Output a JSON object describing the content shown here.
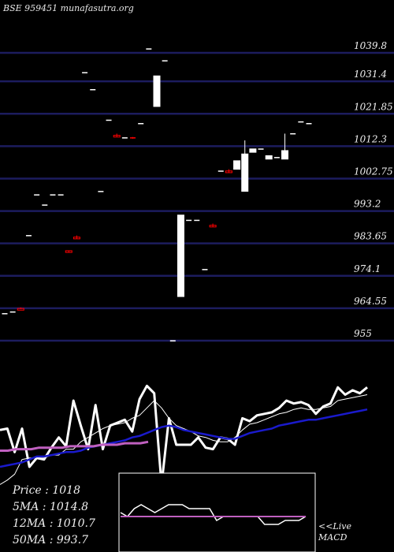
{
  "title": "BSE 959451 munafasutra.org",
  "colors": {
    "background": "#000000",
    "grid": "#1c1c5e",
    "up": "#ffffff",
    "down": "#ff0000",
    "price_line": "#ffffff",
    "ma_short": "#ffffff",
    "ma_mid": "#1a1acc",
    "ma_long": "#c060c0",
    "macd_box": "#ffffff"
  },
  "chart_data": [
    {
      "type": "candlestick",
      "y_ticks": [
        "1039.8",
        "1031.4",
        "1021.85",
        "1012.3",
        "1002.75",
        "993.2",
        "983.65",
        "974.1",
        "964.55",
        "955"
      ],
      "ylim": [
        955,
        1039.8
      ],
      "grid": true,
      "candles": [
        {
          "o": 963,
          "h": 963,
          "l": 963,
          "c": 963
        },
        {
          "o": 963.5,
          "h": 963.5,
          "l": 963.5,
          "c": 963.5
        },
        {
          "o": 964.5,
          "h": 964.8,
          "l": 964.3,
          "c": 964
        },
        {
          "o": 986,
          "h": 986,
          "l": 986,
          "c": 986
        },
        {
          "o": 998,
          "h": 998,
          "l": 998,
          "c": 998
        },
        {
          "o": 995,
          "h": 995,
          "l": 995,
          "c": 995
        },
        {
          "o": 998,
          "h": 998,
          "l": 998,
          "c": 998
        },
        {
          "o": 998,
          "h": 998,
          "l": 998,
          "c": 998
        },
        {
          "o": 981.5,
          "h": 981.5,
          "l": 981,
          "c": 981
        },
        {
          "o": 985.5,
          "h": 986,
          "l": 985,
          "c": 985
        },
        {
          "o": 1034,
          "h": 1034,
          "l": 1034,
          "c": 1034
        },
        {
          "o": 1029,
          "h": 1029,
          "l": 1029,
          "c": 1029
        },
        {
          "o": 999,
          "h": 999,
          "l": 999,
          "c": 999
        },
        {
          "o": 1020,
          "h": 1020,
          "l": 1020,
          "c": 1020
        },
        {
          "o": 1015.5,
          "h": 1016,
          "l": 1015,
          "c": 1015
        },
        {
          "o": 1014.8,
          "h": 1014.8,
          "l": 1014.8,
          "c": 1014.8
        },
        {
          "o": 1014.8,
          "h": 1015,
          "l": 1014.5,
          "c": 1014.5
        },
        {
          "o": 1019,
          "h": 1019,
          "l": 1019,
          "c": 1019
        },
        {
          "o": 1041,
          "h": 1041,
          "l": 1041,
          "c": 1041
        },
        {
          "o": 1024,
          "h": 1033,
          "l": 1024,
          "c": 1033
        },
        {
          "o": 1037.5,
          "h": 1037.5,
          "l": 1037.5,
          "c": 1037.5
        },
        {
          "o": 955,
          "h": 955,
          "l": 955,
          "c": 955
        },
        {
          "o": 968,
          "h": 992,
          "l": 968,
          "c": 992
        },
        {
          "o": 990.5,
          "h": 990.5,
          "l": 990.5,
          "c": 990.5
        },
        {
          "o": 990.5,
          "h": 990.5,
          "l": 990.5,
          "c": 990.5
        },
        {
          "o": 976,
          "h": 976,
          "l": 976,
          "c": 976
        },
        {
          "o": 989,
          "h": 989.5,
          "l": 988.5,
          "c": 988.5
        },
        {
          "o": 1005,
          "h": 1005,
          "l": 1005,
          "c": 1005
        },
        {
          "o": 1005,
          "h": 1005.5,
          "l": 1004.5,
          "c": 1004.5
        },
        {
          "o": 1005.5,
          "h": 1008,
          "l": 1005.5,
          "c": 1008
        },
        {
          "o": 999,
          "h": 1014,
          "l": 999,
          "c": 1010
        },
        {
          "o": 1010.5,
          "h": 1011.5,
          "l": 1010.5,
          "c": 1011.5
        },
        {
          "o": 1011.5,
          "h": 1011.5,
          "l": 1011.5,
          "c": 1011.5
        },
        {
          "o": 1008.5,
          "h": 1009.5,
          "l": 1008.5,
          "c": 1009.5
        },
        {
          "o": 1009,
          "h": 1009,
          "l": 1009,
          "c": 1009
        },
        {
          "o": 1008.5,
          "h": 1016,
          "l": 1008.5,
          "c": 1011
        },
        {
          "o": 1016,
          "h": 1016,
          "l": 1016,
          "c": 1016
        },
        {
          "o": 1019.5,
          "h": 1019.5,
          "l": 1019.5,
          "c": 1019.5
        },
        {
          "o": 1019,
          "h": 1019,
          "l": 1019,
          "c": 1019
        }
      ]
    },
    {
      "type": "line",
      "series": [
        {
          "id": "price",
          "values": [
            975,
            976,
            960,
            976,
            950,
            956,
            955,
            963,
            970,
            964,
            995,
            978,
            962,
            992,
            962,
            978,
            980,
            982,
            974,
            996,
            1005,
            1000,
            938,
            983,
            965,
            965,
            965,
            970,
            963,
            962,
            970,
            969,
            965,
            983,
            981,
            985,
            986,
            987,
            990,
            995,
            993,
            994,
            992,
            986,
            991,
            993,
            1004,
            999,
            1002,
            1000,
            1004
          ]
        },
        {
          "id": "ma_short",
          "values": [
            938,
            941,
            945,
            955,
            956,
            956,
            956,
            958,
            958,
            962,
            962,
            967,
            970,
            973,
            976,
            978,
            979,
            980,
            983,
            985,
            990,
            995,
            990,
            983,
            978,
            976,
            974,
            971,
            970,
            968,
            967,
            967,
            970,
            975,
            979,
            980,
            982,
            984,
            986,
            987,
            989,
            990,
            989,
            989,
            990,
            991,
            995,
            996,
            997,
            998,
            999
          ]
        },
        {
          "id": "ma_mid",
          "values": [
            950,
            951,
            952,
            953,
            955,
            957,
            957,
            958,
            959,
            960,
            960,
            961,
            963,
            964,
            965,
            966,
            967,
            968,
            970,
            971,
            973,
            975,
            977,
            978,
            977,
            975,
            974,
            973,
            972,
            971,
            970,
            969,
            969,
            971,
            973,
            974,
            975,
            976,
            978,
            979,
            980,
            981,
            982,
            982,
            983,
            984,
            985,
            986,
            987,
            988,
            989
          ]
        },
        {
          "id": "ma_long",
          "values": [
            961,
            961,
            962,
            962,
            962,
            963,
            963,
            963,
            963,
            964,
            964,
            964,
            964,
            965,
            965,
            965,
            966,
            966,
            966,
            967
          ]
        }
      ]
    },
    {
      "type": "line",
      "name": "MACD",
      "series": [
        {
          "id": "macd",
          "values": [
            4,
            3,
            5,
            6,
            5,
            4,
            5,
            6,
            6,
            6,
            5,
            5,
            5,
            5,
            2,
            3,
            3,
            3,
            3,
            3,
            3,
            1,
            1,
            1,
            2,
            2,
            2,
            3
          ]
        },
        {
          "id": "signal",
          "values": [
            3,
            3,
            3,
            3,
            3,
            3,
            3,
            3,
            3,
            3,
            3,
            3,
            3,
            3,
            3,
            3,
            3,
            3,
            3,
            3,
            3,
            3,
            3,
            3,
            3,
            3,
            3,
            3
          ]
        }
      ]
    }
  ],
  "stats": [
    {
      "label": "Price",
      "value": "1018"
    },
    {
      "label": "5MA",
      "value": "1014.8"
    },
    {
      "label": "12MA",
      "value": "1010.7"
    },
    {
      "label": "50MA",
      "value": "993.7"
    }
  ],
  "macd_caption": {
    "line1": "<<Live",
    "line2": "MACD"
  }
}
